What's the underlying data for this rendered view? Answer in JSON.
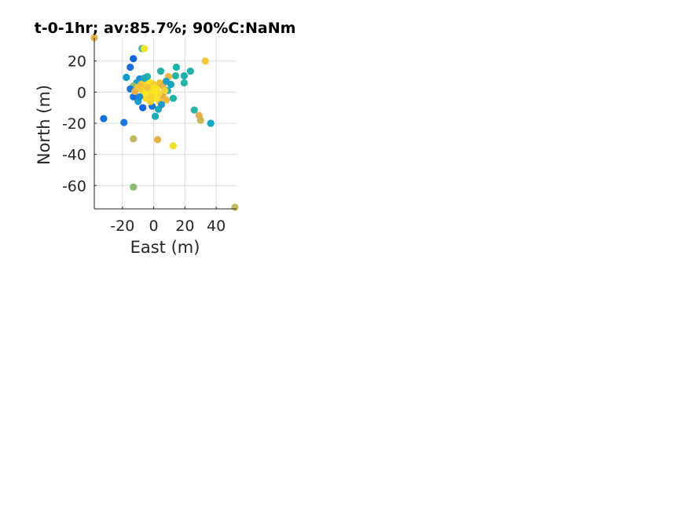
{
  "chart_data": {
    "type": "scatter",
    "title": "t-0-1hr; av:85.7%; 90%C:NaNm",
    "xlabel": "East (m)",
    "ylabel": "North (m)",
    "xlim": [
      -38,
      53
    ],
    "ylim": [
      -75,
      35
    ],
    "xticks": [
      -20,
      0,
      20,
      40
    ],
    "xtick_labels": [
      "-20",
      "0",
      "20",
      "40"
    ],
    "yticks": [
      -60,
      -40,
      -20,
      0,
      20
    ],
    "ytick_labels": [
      "-60",
      "-40",
      "-20",
      "0",
      "20"
    ],
    "grid": true,
    "points": [
      {
        "x": -38,
        "y": 35,
        "color": "#e6b04a"
      },
      {
        "x": 52,
        "y": -74,
        "color": "#c2bb5e"
      },
      {
        "x": -32,
        "y": -17,
        "color": "#0f6fd6"
      },
      {
        "x": -19,
        "y": -19.5,
        "color": "#1a78d8"
      },
      {
        "x": -13,
        "y": 21.5,
        "color": "#1166e0"
      },
      {
        "x": -15,
        "y": 16,
        "color": "#1a70d8"
      },
      {
        "x": -7.5,
        "y": 28,
        "color": "#4cb89a"
      },
      {
        "x": -6,
        "y": 28,
        "color": "#f5e326"
      },
      {
        "x": 33,
        "y": 20,
        "color": "#f7c53a"
      },
      {
        "x": -17.5,
        "y": 9.5,
        "color": "#109bd0"
      },
      {
        "x": 4.5,
        "y": 13.5,
        "color": "#22b2a8"
      },
      {
        "x": 14.5,
        "y": 16,
        "color": "#1ab0b0"
      },
      {
        "x": 14,
        "y": 10.5,
        "color": "#25b4a2"
      },
      {
        "x": 19.5,
        "y": 10.5,
        "color": "#1cb1ac"
      },
      {
        "x": 23.5,
        "y": 13.5,
        "color": "#20b2aa"
      },
      {
        "x": 19.5,
        "y": 6,
        "color": "#26b4a4"
      },
      {
        "x": 11,
        "y": 5,
        "color": "#1aa8c0"
      },
      {
        "x": 9.5,
        "y": 10,
        "color": "#e8b442"
      },
      {
        "x": 12.5,
        "y": -4,
        "color": "#22b2a8"
      },
      {
        "x": 9,
        "y": 1,
        "color": "#30b59e"
      },
      {
        "x": -4,
        "y": 10,
        "color": "#2ab3a4"
      },
      {
        "x": -9,
        "y": 8.5,
        "color": "#1a8ad4"
      },
      {
        "x": -11,
        "y": 6,
        "color": "#18a0c8"
      },
      {
        "x": -13,
        "y": 4,
        "color": "#8cbc72"
      },
      {
        "x": -15,
        "y": 2,
        "color": "#1a74d8"
      },
      {
        "x": -13,
        "y": -3,
        "color": "#1572dc"
      },
      {
        "x": -10,
        "y": -6,
        "color": "#1a9ecc"
      },
      {
        "x": -7,
        "y": -10,
        "color": "#0f64dc"
      },
      {
        "x": -1,
        "y": -9,
        "color": "#1a7ad6"
      },
      {
        "x": 3,
        "y": -11,
        "color": "#20a8c0"
      },
      {
        "x": 1,
        "y": -15.5,
        "color": "#1aaeb4"
      },
      {
        "x": 26,
        "y": -11.5,
        "color": "#2cb4a2"
      },
      {
        "x": 29,
        "y": -15,
        "color": "#e8ac48"
      },
      {
        "x": 30,
        "y": -18,
        "color": "#c8b858"
      },
      {
        "x": 36.5,
        "y": -20,
        "color": "#10a8c8"
      },
      {
        "x": -13,
        "y": -30,
        "color": "#c2b860"
      },
      {
        "x": 2.5,
        "y": -30.5,
        "color": "#e8ae48"
      },
      {
        "x": 12.5,
        "y": -34.5,
        "color": "#f0e028"
      },
      {
        "x": -13,
        "y": -61,
        "color": "#8cbc74"
      },
      {
        "x": -12,
        "y": 0.5,
        "color": "#e6b046"
      },
      {
        "x": -10,
        "y": 3,
        "color": "#f7c53a"
      },
      {
        "x": -8,
        "y": 5,
        "color": "#f2ba40"
      },
      {
        "x": -6,
        "y": 7,
        "color": "#f5d032"
      },
      {
        "x": -4,
        "y": 4,
        "color": "#f8e026"
      },
      {
        "x": -2,
        "y": 6,
        "color": "#f9e521"
      },
      {
        "x": 0,
        "y": 5,
        "color": "#f5cf34"
      },
      {
        "x": 2,
        "y": 3,
        "color": "#f8e224"
      },
      {
        "x": 4,
        "y": 6,
        "color": "#f0c03c"
      },
      {
        "x": 6,
        "y": 4,
        "color": "#e8b244"
      },
      {
        "x": 7,
        "y": 1,
        "color": "#f5d030"
      },
      {
        "x": 6,
        "y": -3,
        "color": "#e6ae46"
      },
      {
        "x": 8,
        "y": -5,
        "color": "#f0b83e"
      },
      {
        "x": 4,
        "y": -6,
        "color": "#f7c836"
      },
      {
        "x": 1,
        "y": -4,
        "color": "#f9e521"
      },
      {
        "x": -2,
        "y": -6,
        "color": "#f4d232"
      },
      {
        "x": -5,
        "y": -4,
        "color": "#f6da2c"
      },
      {
        "x": -7,
        "y": -1,
        "color": "#f9e521"
      },
      {
        "x": -8,
        "y": 2,
        "color": "#f3c838"
      },
      {
        "x": -5,
        "y": 1,
        "color": "#f9e521"
      },
      {
        "x": -3,
        "y": 0,
        "color": "#fae722"
      },
      {
        "x": -1,
        "y": 2,
        "color": "#f8e226"
      },
      {
        "x": 1,
        "y": 0,
        "color": "#f9e521"
      },
      {
        "x": 3,
        "y": -1,
        "color": "#f6da2a"
      },
      {
        "x": 0,
        "y": -2,
        "color": "#f9e521"
      },
      {
        "x": -2,
        "y": -3,
        "color": "#f5d430"
      },
      {
        "x": -4,
        "y": 3,
        "color": "#f2c23a"
      },
      {
        "x": 2,
        "y": 1,
        "color": "#fae521"
      },
      {
        "x": -6,
        "y": 9,
        "color": "#20aab8"
      },
      {
        "x": 8,
        "y": 7,
        "color": "#1c9ec8"
      },
      {
        "x": -9,
        "y": -3,
        "color": "#1a88d4"
      },
      {
        "x": 5,
        "y": -8,
        "color": "#1e9cc8"
      }
    ]
  }
}
